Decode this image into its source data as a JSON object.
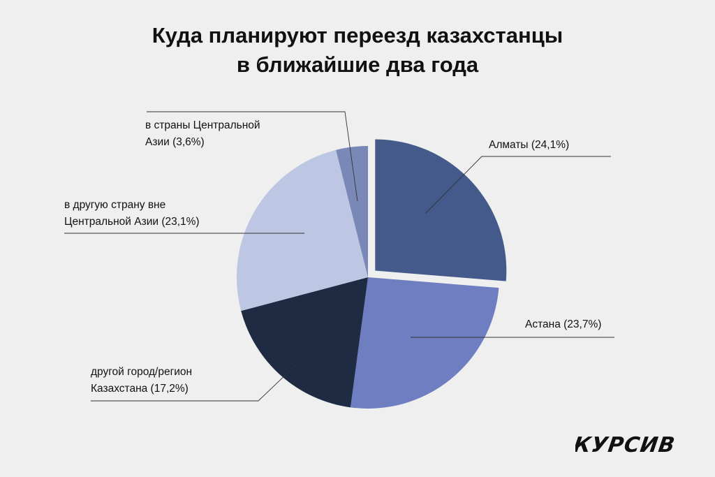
{
  "chart_data": {
    "type": "pie",
    "title_line1": "Куда планируют переезд казахстанцы",
    "title_line2": "в ближайшие два года",
    "unit": "%",
    "slices": [
      {
        "label": "Алматы (24,1%)",
        "lines": [
          "Алматы (24,1%)"
        ],
        "value": 24.1,
        "color": "#435a8b",
        "exploded": true
      },
      {
        "label": "Астана (23,7%)",
        "lines": [
          "Астана (23,7%)"
        ],
        "value": 23.7,
        "color": "#6f7ec1",
        "exploded": false
      },
      {
        "label": "другой город/регион Казахстана (17,2%)",
        "lines": [
          "другой город/регион",
          "Казахстана (17,2%)"
        ],
        "value": 17.2,
        "color": "#1e2b42",
        "exploded": false
      },
      {
        "label": "в другую страну вне Центральной Азии (23,1%)",
        "lines": [
          "в другую страну вне",
          "Центральной Азии (23,1%)"
        ],
        "value": 23.1,
        "color": "#bdc6e2",
        "exploded": false
      },
      {
        "label": "в страны Центральной Азии (3,6%)",
        "lines": [
          "в страны Центральной",
          "Азии (3,6%)"
        ],
        "value": 3.6,
        "color": "#7a88b8",
        "exploded": false
      }
    ]
  },
  "brand": {
    "logo_text": "КУРСИВ"
  }
}
